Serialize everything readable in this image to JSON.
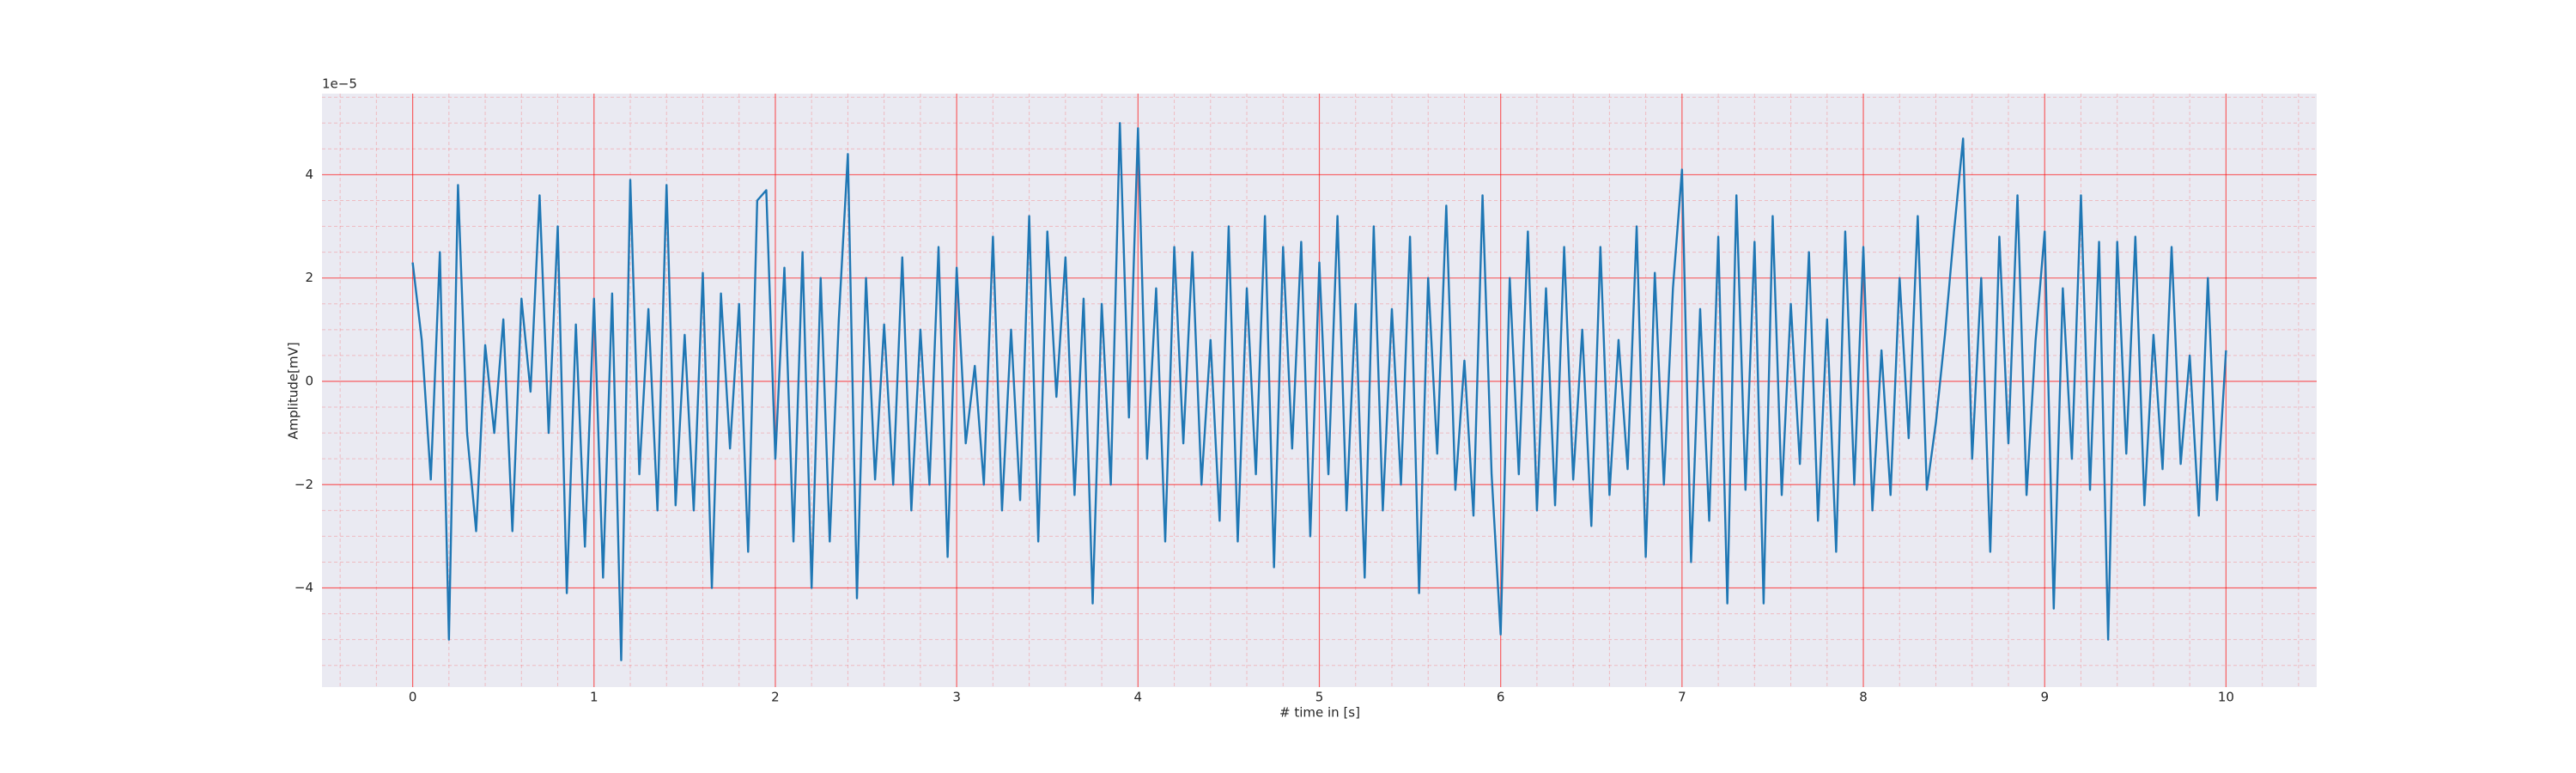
{
  "chart_data": {
    "type": "line",
    "xlabel": "# time in [s]",
    "ylabel": "Amplitude[mV]",
    "y_offset_label": "1e−5",
    "color": "#1f77b4",
    "background": "#eaeaf2",
    "grid": true,
    "grid_color": "#ff0000",
    "xlim": [
      -0.5,
      10.5
    ],
    "ylim": [
      -5.92,
      5.57
    ],
    "xticks": [
      0,
      1,
      2,
      3,
      4,
      5,
      6,
      7,
      8,
      9,
      10
    ],
    "yticks": [
      {
        "value": -4,
        "label": "−4"
      },
      {
        "value": -2,
        "label": "−2"
      },
      0,
      2,
      4
    ],
    "xticks_minor": [
      -0.4,
      -0.2,
      0.2,
      0.4,
      0.6,
      0.8,
      1.2,
      1.4,
      1.6,
      1.8,
      2.2,
      2.4,
      2.6,
      2.8,
      3.2,
      3.4,
      3.6,
      3.8,
      4.2,
      4.4,
      4.6,
      4.8,
      5.2,
      5.4,
      5.6,
      5.8,
      6.2,
      6.4,
      6.6,
      6.8,
      7.2,
      7.4,
      7.6,
      7.8,
      8.2,
      8.4,
      8.6,
      8.8,
      9.2,
      9.4,
      9.6,
      9.8,
      10.2,
      10.4
    ],
    "yticks_minor": [
      -5.5,
      -5,
      -4.5,
      -3.5,
      -3,
      -2.5,
      -1.5,
      -1,
      -0.5,
      0.5,
      1,
      1.5,
      2.5,
      3,
      3.5,
      4.5,
      5,
      5.5
    ],
    "x": [
      0,
      0.05,
      0.1,
      0.15,
      0.2,
      0.25,
      0.3,
      0.35,
      0.4,
      0.45,
      0.5,
      0.55,
      0.6,
      0.65,
      0.7,
      0.75,
      0.8,
      0.85,
      0.9,
      0.95,
      1,
      1.05,
      1.1,
      1.15,
      1.2,
      1.25,
      1.3,
      1.35,
      1.4,
      1.45,
      1.5,
      1.55,
      1.6,
      1.65,
      1.7,
      1.75,
      1.8,
      1.85,
      1.9,
      1.95,
      2,
      2.05,
      2.1,
      2.15,
      2.2,
      2.25,
      2.3,
      2.35,
      2.4,
      2.45,
      2.5,
      2.55,
      2.6,
      2.65,
      2.7,
      2.75,
      2.8,
      2.85,
      2.9,
      2.95,
      3,
      3.05,
      3.1,
      3.15,
      3.2,
      3.25,
      3.3,
      3.35,
      3.4,
      3.45,
      3.5,
      3.55,
      3.6,
      3.65,
      3.7,
      3.75,
      3.8,
      3.85,
      3.9,
      3.95,
      4,
      4.05,
      4.1,
      4.15,
      4.2,
      4.25,
      4.3,
      4.35,
      4.4,
      4.45,
      4.5,
      4.55,
      4.6,
      4.65,
      4.7,
      4.75,
      4.8,
      4.85,
      4.9,
      4.95,
      5,
      5.05,
      5.1,
      5.15,
      5.2,
      5.25,
      5.3,
      5.35,
      5.4,
      5.45,
      5.5,
      5.55,
      5.6,
      5.65,
      5.7,
      5.75,
      5.8,
      5.85,
      5.9,
      5.95,
      6,
      6.05,
      6.1,
      6.15,
      6.2,
      6.25,
      6.3,
      6.35,
      6.4,
      6.45,
      6.5,
      6.55,
      6.6,
      6.65,
      6.7,
      6.75,
      6.8,
      6.85,
      6.9,
      6.95,
      7,
      7.05,
      7.1,
      7.15,
      7.2,
      7.25,
      7.3,
      7.35,
      7.4,
      7.45,
      7.5,
      7.55,
      7.6,
      7.65,
      7.7,
      7.75,
      7.8,
      7.85,
      7.9,
      7.95,
      8,
      8.05,
      8.1,
      8.15,
      8.2,
      8.25,
      8.3,
      8.35,
      8.4,
      8.45,
      8.5,
      8.55,
      8.6,
      8.65,
      8.7,
      8.75,
      8.8,
      8.85,
      8.9,
      8.95,
      9,
      9.05,
      9.1,
      9.15,
      9.2,
      9.25,
      9.3,
      9.35,
      9.4,
      9.45,
      9.5,
      9.55,
      9.6,
      9.65,
      9.7,
      9.75,
      9.8,
      9.85,
      9.9,
      9.95,
      10
    ],
    "values": [
      2.3,
      0.8,
      -1.9,
      2.5,
      -5.0,
      3.8,
      -1.0,
      -2.9,
      0.7,
      -1.0,
      1.2,
      -2.9,
      1.6,
      -0.2,
      3.6,
      -1.0,
      3.0,
      -4.1,
      1.1,
      -3.2,
      1.6,
      -3.8,
      1.7,
      -5.4,
      3.9,
      -1.8,
      1.4,
      -2.5,
      3.8,
      -2.4,
      0.9,
      -2.5,
      2.1,
      -4.0,
      1.7,
      -1.3,
      1.5,
      -3.3,
      3.5,
      3.7,
      -1.5,
      2.2,
      -3.1,
      2.5,
      -4.0,
      2.0,
      -3.1,
      1.2,
      4.4,
      -4.2,
      2.0,
      -1.9,
      1.1,
      -2.0,
      2.4,
      -2.5,
      1.0,
      -2.0,
      2.6,
      -3.4,
      2.2,
      -1.2,
      0.3,
      -2.0,
      2.8,
      -2.5,
      1.0,
      -2.3,
      3.2,
      -3.1,
      2.9,
      -0.3,
      2.4,
      -2.2,
      1.6,
      -4.3,
      1.5,
      -2.0,
      5.0,
      -0.7,
      4.9,
      -1.5,
      1.8,
      -3.1,
      2.6,
      -1.2,
      2.5,
      -2.0,
      0.8,
      -2.7,
      3.0,
      -3.1,
      1.8,
      -1.8,
      3.2,
      -3.6,
      2.6,
      -1.3,
      2.7,
      -3.0,
      2.3,
      -1.8,
      3.2,
      -2.5,
      1.5,
      -3.8,
      3.0,
      -2.5,
      1.4,
      -2.0,
      2.8,
      -4.1,
      2.0,
      -1.4,
      3.4,
      -2.1,
      0.4,
      -2.6,
      3.6,
      -1.8,
      -4.9,
      2.0,
      -1.8,
      2.9,
      -2.5,
      1.8,
      -2.4,
      2.6,
      -1.9,
      1.0,
      -2.8,
      2.6,
      -2.2,
      0.8,
      -1.7,
      3.0,
      -3.4,
      2.1,
      -2.0,
      1.8,
      4.1,
      -3.5,
      1.4,
      -2.7,
      2.8,
      -4.3,
      3.6,
      -2.1,
      2.7,
      -4.3,
      3.2,
      -2.2,
      1.5,
      -1.6,
      2.5,
      -2.7,
      1.2,
      -3.3,
      2.9,
      -2.0,
      2.6,
      -2.5,
      0.6,
      -2.2,
      2.0,
      -1.1,
      3.2,
      -2.1,
      -0.8,
      0.9,
      2.9,
      4.7,
      -1.5,
      2.0,
      -3.3,
      2.8,
      -1.2,
      3.6,
      -2.2,
      0.8,
      2.9,
      -4.4,
      1.8,
      -1.5,
      3.6,
      -2.1,
      2.7,
      -5.0,
      2.7,
      -1.4,
      2.8,
      -2.4,
      0.9,
      -1.7,
      2.6,
      -1.6,
      0.5,
      -2.6,
      2.0,
      -2.3,
      0.6
    ]
  }
}
